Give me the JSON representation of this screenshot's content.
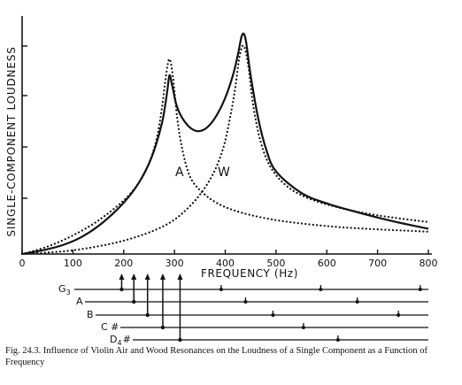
{
  "caption": "Fig. 24.3.   Influence of Violin Air and Wood Resonances on the Loudness of a Single Component as a Function of Frequency",
  "chart_data": {
    "type": "line",
    "title": "",
    "xlabel": "FREQUENCY (Hz)",
    "ylabel": "SINGLE-COMPONENT  LOUDNESS",
    "xlim": [
      0,
      800
    ],
    "xticks": [
      0,
      100,
      200,
      300,
      400,
      500,
      600,
      700,
      800
    ],
    "grid": false,
    "annotations": [
      "A",
      "W"
    ],
    "series": [
      {
        "style": "solid",
        "x": [
          0,
          40,
          80,
          120,
          160,
          200,
          230,
          255,
          275,
          285,
          290,
          295,
          305,
          320,
          340,
          360,
          380,
          400,
          415,
          425,
          433,
          440,
          450,
          465,
          480,
          500,
          550,
          600,
          650,
          700,
          750,
          800
        ],
        "y": [
          0,
          0.5,
          1.2,
          2.4,
          4.3,
          6.9,
          9.6,
          13.0,
          17.5,
          21.5,
          24.0,
          22.8,
          19.8,
          17.8,
          16.6,
          16.8,
          18.3,
          21.0,
          24.0,
          26.8,
          29.4,
          28.9,
          24.0,
          18.2,
          14.2,
          11.1,
          8.2,
          6.8,
          5.8,
          4.9,
          4.1,
          3.4
        ]
      },
      {
        "style": "dotted",
        "label": "A",
        "x": [
          0,
          50,
          100,
          150,
          200,
          230,
          250,
          265,
          275,
          283,
          290,
          297,
          305,
          315,
          330,
          350,
          380,
          420,
          480,
          550,
          650,
          800
        ],
        "y": [
          0,
          1.0,
          2.5,
          4.5,
          7.2,
          9.6,
          12.2,
          15.5,
          19.5,
          23.8,
          26.2,
          23.8,
          18.5,
          14.2,
          10.5,
          8.6,
          7.0,
          5.8,
          4.8,
          4.1,
          3.5,
          3.0
        ]
      },
      {
        "style": "dotted",
        "label": "W",
        "x": [
          0,
          100,
          200,
          280,
          330,
          370,
          395,
          410,
          420,
          428,
          436,
          445,
          455,
          470,
          490,
          520,
          560,
          620,
          700,
          800
        ],
        "y": [
          0,
          0.5,
          1.8,
          3.8,
          6.4,
          10.0,
          14.0,
          18.5,
          22.5,
          26.5,
          28.0,
          25.5,
          20.0,
          15.0,
          11.6,
          9.2,
          7.6,
          6.3,
          5.2,
          4.3
        ]
      }
    ]
  },
  "staff": {
    "notes": [
      {
        "label": "G",
        "sub": "3",
        "harmonics": [
          196,
          392,
          588,
          784
        ]
      },
      {
        "label": "A",
        "sub": "",
        "harmonics": [
          220,
          440,
          660
        ]
      },
      {
        "label": "B",
        "sub": "",
        "harmonics": [
          247,
          494,
          741
        ]
      },
      {
        "label": "C #",
        "sub": "",
        "harmonics": [
          277,
          554
        ]
      },
      {
        "label": "D",
        "sub": "4",
        "suffix": "#",
        "harmonics": [
          311,
          622
        ]
      }
    ]
  }
}
